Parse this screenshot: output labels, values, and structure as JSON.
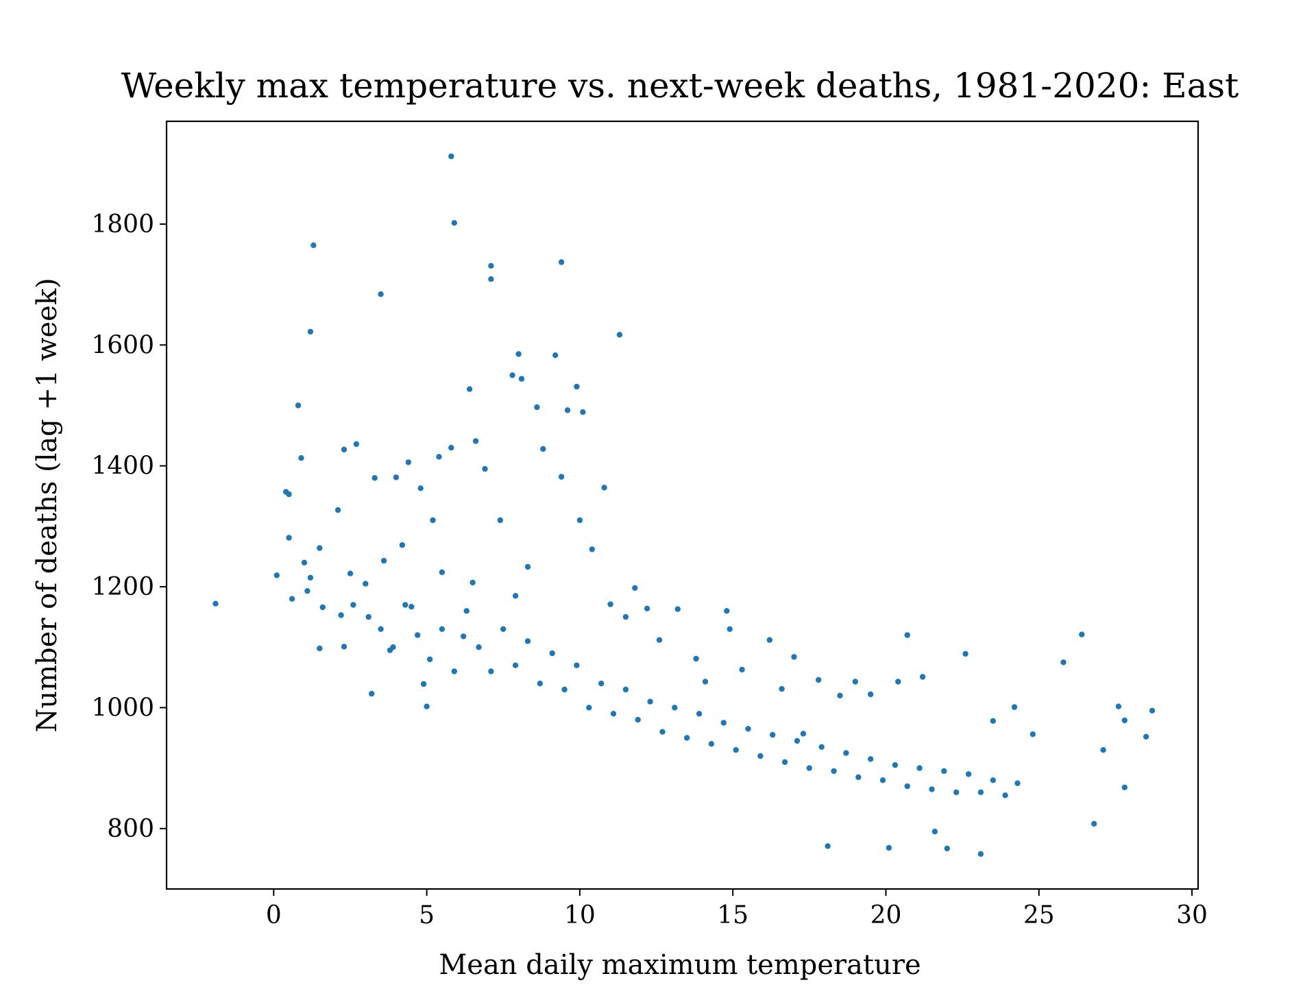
{
  "chart_data": {
    "type": "scatter",
    "title": "Weekly max temperature vs. next-week deaths, 1981-2020: East",
    "xlabel": "Mean daily maximum temperature",
    "ylabel": "Number of deaths (lag +1 week)",
    "xlim": [
      -3.5,
      30.2
    ],
    "ylim": [
      700,
      1970
    ],
    "xticks": [
      0,
      5,
      10,
      15,
      20,
      25,
      30
    ],
    "xtick_labels": [
      "0",
      "5",
      "10",
      "15",
      "20",
      "25",
      "30"
    ],
    "yticks": [
      800,
      1000,
      1200,
      1400,
      1600,
      1800
    ],
    "ytick_labels": [
      "800",
      "1000",
      "1200",
      "1400",
      "1600",
      "1800"
    ],
    "grid": false,
    "legend": false,
    "colors": {
      "points": "#1f77b4",
      "axes": "#000000"
    },
    "series": [
      {
        "points": [
          [
            -1.9,
            1172
          ],
          [
            0.1,
            1219
          ],
          [
            0.4,
            1357
          ],
          [
            0.5,
            1281
          ],
          [
            0.5,
            1353
          ],
          [
            0.6,
            1180
          ],
          [
            0.8,
            1500
          ],
          [
            0.9,
            1413
          ],
          [
            1.0,
            1240
          ],
          [
            1.1,
            1193
          ],
          [
            1.2,
            1622
          ],
          [
            1.2,
            1215
          ],
          [
            1.3,
            1765
          ],
          [
            1.5,
            1264
          ],
          [
            1.5,
            1098
          ],
          [
            1.6,
            1166
          ],
          [
            2.1,
            1327
          ],
          [
            2.2,
            1153
          ],
          [
            2.3,
            1427
          ],
          [
            2.3,
            1101
          ],
          [
            2.5,
            1222
          ],
          [
            2.7,
            1436
          ],
          [
            3.0,
            1205
          ],
          [
            3.2,
            1023
          ],
          [
            3.3,
            1380
          ],
          [
            3.5,
            1684
          ],
          [
            3.6,
            1243
          ],
          [
            3.8,
            1095
          ],
          [
            4.0,
            1381
          ],
          [
            4.2,
            1269
          ],
          [
            4.4,
            1406
          ],
          [
            4.5,
            1167
          ],
          [
            4.8,
            1363
          ],
          [
            4.9,
            1039
          ],
          [
            5.0,
            1002
          ],
          [
            5.2,
            1310
          ],
          [
            5.4,
            1415
          ],
          [
            5.5,
            1224
          ],
          [
            5.8,
            1430
          ],
          [
            5.8,
            1912
          ],
          [
            5.9,
            1802
          ],
          [
            6.2,
            1118
          ],
          [
            6.4,
            1527
          ],
          [
            6.5,
            1207
          ],
          [
            6.6,
            1441
          ],
          [
            6.9,
            1395
          ],
          [
            7.1,
            1731
          ],
          [
            7.1,
            1709
          ],
          [
            7.4,
            1310
          ],
          [
            7.8,
            1550
          ],
          [
            7.9,
            1185
          ],
          [
            8.0,
            1585
          ],
          [
            8.1,
            1544
          ],
          [
            8.3,
            1233
          ],
          [
            8.6,
            1497
          ],
          [
            8.8,
            1428
          ],
          [
            9.2,
            1583
          ],
          [
            9.4,
            1737
          ],
          [
            9.4,
            1382
          ],
          [
            9.6,
            1492
          ],
          [
            9.9,
            1531
          ],
          [
            10.0,
            1310
          ],
          [
            10.1,
            1489
          ],
          [
            10.4,
            1262
          ],
          [
            10.8,
            1364
          ],
          [
            11.0,
            1171
          ],
          [
            11.3,
            1617
          ],
          [
            11.5,
            1150
          ],
          [
            11.8,
            1198
          ],
          [
            12.2,
            1164
          ],
          [
            12.6,
            1112
          ],
          [
            13.2,
            1163
          ],
          [
            13.8,
            1081
          ],
          [
            14.1,
            1043
          ],
          [
            14.8,
            1160
          ],
          [
            14.9,
            1130
          ],
          [
            15.3,
            1063
          ],
          [
            16.2,
            1112
          ],
          [
            16.6,
            1031
          ],
          [
            17.0,
            1084
          ],
          [
            17.3,
            957
          ],
          [
            17.8,
            1046
          ],
          [
            18.1,
            771
          ],
          [
            18.5,
            1020
          ],
          [
            19.0,
            1043
          ],
          [
            19.5,
            1022
          ],
          [
            20.1,
            768
          ],
          [
            20.4,
            1043
          ],
          [
            20.7,
            1120
          ],
          [
            21.2,
            1051
          ],
          [
            21.6,
            795
          ],
          [
            22.0,
            767
          ],
          [
            22.6,
            1089
          ],
          [
            23.1,
            758
          ],
          [
            23.5,
            978
          ],
          [
            24.2,
            1001
          ],
          [
            24.8,
            956
          ],
          [
            25.8,
            1075
          ],
          [
            26.4,
            1121
          ],
          [
            26.8,
            808
          ],
          [
            27.1,
            930
          ],
          [
            27.6,
            1002
          ],
          [
            27.8,
            979
          ],
          [
            27.8,
            868
          ],
          [
            28.5,
            952
          ],
          [
            28.7,
            995
          ],
          [
            2.6,
            1170
          ],
          [
            3.1,
            1150
          ],
          [
            3.5,
            1130
          ],
          [
            3.9,
            1100
          ],
          [
            4.3,
            1170
          ],
          [
            4.7,
            1120
          ],
          [
            5.1,
            1080
          ],
          [
            5.5,
            1130
          ],
          [
            5.9,
            1060
          ],
          [
            6.3,
            1160
          ],
          [
            6.7,
            1100
          ],
          [
            7.1,
            1060
          ],
          [
            7.5,
            1130
          ],
          [
            7.9,
            1070
          ],
          [
            8.3,
            1110
          ],
          [
            8.7,
            1040
          ],
          [
            9.1,
            1090
          ],
          [
            9.5,
            1030
          ],
          [
            9.9,
            1070
          ],
          [
            10.3,
            1000
          ],
          [
            10.7,
            1040
          ],
          [
            11.1,
            990
          ],
          [
            11.5,
            1030
          ],
          [
            11.9,
            980
          ],
          [
            12.3,
            1010
          ],
          [
            12.7,
            960
          ],
          [
            13.1,
            1000
          ],
          [
            13.5,
            950
          ],
          [
            13.9,
            990
          ],
          [
            14.3,
            940
          ],
          [
            14.7,
            975
          ],
          [
            15.1,
            930
          ],
          [
            15.5,
            965
          ],
          [
            15.9,
            920
          ],
          [
            16.3,
            955
          ],
          [
            16.7,
            910
          ],
          [
            17.1,
            945
          ],
          [
            17.5,
            900
          ],
          [
            17.9,
            935
          ],
          [
            18.3,
            895
          ],
          [
            18.7,
            925
          ],
          [
            19.1,
            885
          ],
          [
            19.5,
            915
          ],
          [
            19.9,
            880
          ],
          [
            20.3,
            905
          ],
          [
            20.7,
            870
          ],
          [
            21.1,
            900
          ],
          [
            21.5,
            865
          ],
          [
            21.9,
            895
          ],
          [
            22.3,
            860
          ],
          [
            22.7,
            890
          ],
          [
            23.1,
            860
          ],
          [
            23.5,
            880
          ],
          [
            23.9,
            855
          ],
          [
            24.3,
            875
          ]
        ]
      }
    ]
  }
}
